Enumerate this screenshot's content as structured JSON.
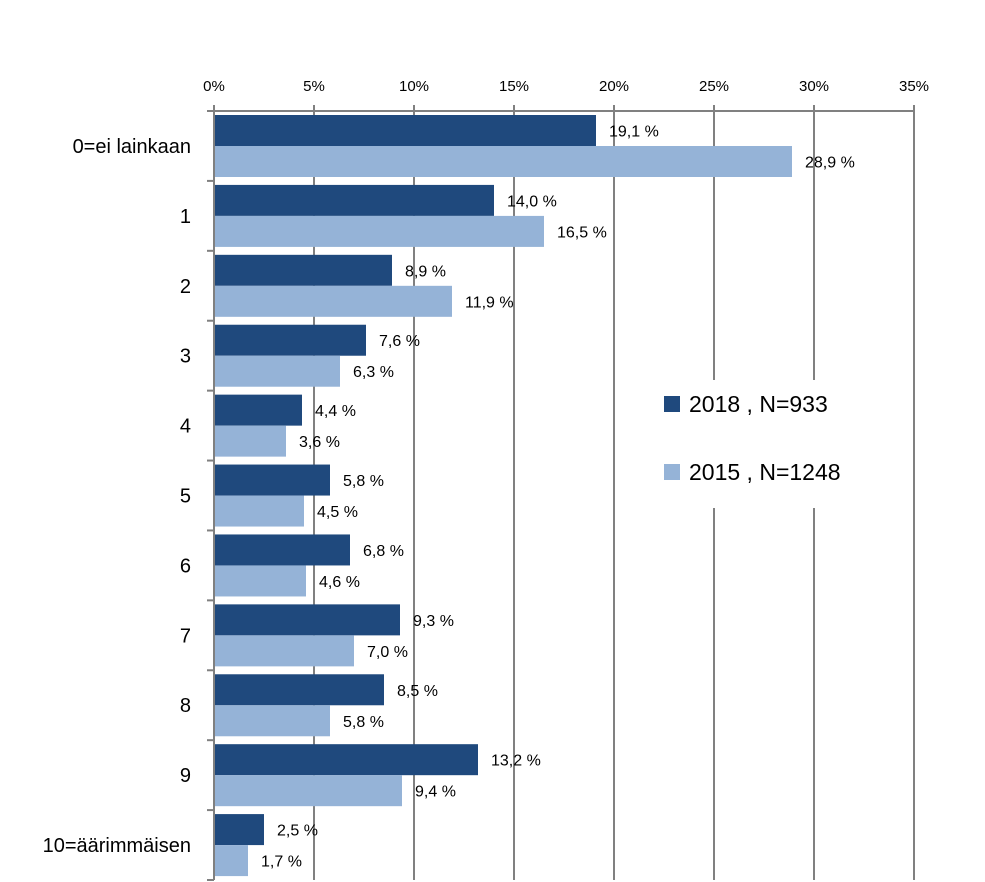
{
  "chart_data": {
    "type": "bar",
    "orientation": "horizontal",
    "categories": [
      "0=ei lainkaan",
      "1",
      "2",
      "3",
      "4",
      "5",
      "6",
      "7",
      "8",
      "9",
      "10=äärimmäisen"
    ],
    "series": [
      {
        "name": "2018 , N=933",
        "color": "#1f497d",
        "values": [
          19.1,
          14.0,
          8.9,
          7.6,
          4.4,
          5.8,
          6.8,
          9.3,
          8.5,
          13.2,
          2.5
        ],
        "labels": [
          "19,1 %",
          "14,0 %",
          "8,9 %",
          "7,6 %",
          "4,4 %",
          "5,8 %",
          "6,8 %",
          "9,3 %",
          "8,5 %",
          "13,2 %",
          "2,5 %"
        ]
      },
      {
        "name": "2015 , N=1248",
        "color": "#95b3d7",
        "values": [
          28.9,
          16.5,
          11.9,
          6.3,
          3.6,
          4.5,
          4.6,
          7.0,
          5.8,
          9.4,
          1.7
        ],
        "labels": [
          "28,9 %",
          "16,5 %",
          "11,9 %",
          "6,3 %",
          "3,6 %",
          "4,5 %",
          "4,6 %",
          "7,0 %",
          "5,8 %",
          "9,4 %",
          "1,7 %"
        ]
      }
    ],
    "xlim": [
      0,
      35
    ],
    "x_ticks": [
      "0%",
      "5%",
      "10%",
      "15%",
      "20%",
      "25%",
      "30%",
      "35%"
    ],
    "x_axis_position": "top",
    "grid": true,
    "legend_position": "right",
    "title": "",
    "xlabel": "",
    "ylabel": ""
  }
}
